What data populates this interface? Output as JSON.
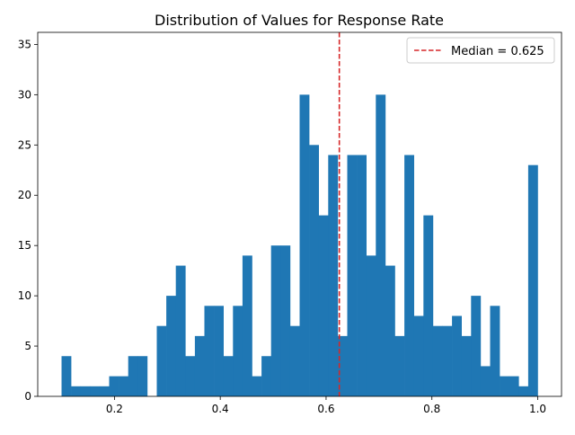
{
  "chart_data": {
    "type": "bar",
    "title": "Distribution of Values for Response Rate",
    "xlabel": "",
    "ylabel": "",
    "bar_color": "#1f77b4",
    "bin_start": 0.1,
    "bin_width": 0.018,
    "counts": [
      4,
      1,
      1,
      1,
      1,
      2,
      2,
      4,
      4,
      0,
      7,
      10,
      13,
      4,
      6,
      9,
      9,
      4,
      9,
      14,
      2,
      4,
      15,
      15,
      7,
      30,
      25,
      18,
      24,
      6,
      24,
      24,
      14,
      30,
      13,
      6,
      24,
      8,
      18,
      7,
      7,
      8,
      6,
      10,
      3,
      9,
      2,
      2,
      1,
      23
    ],
    "xlim": [
      0.055,
      1.045
    ],
    "ylim": [
      0,
      36.2
    ],
    "xticks": [
      0.2,
      0.4,
      0.6,
      0.8,
      1.0
    ],
    "xtick_labels": [
      "0.2",
      "0.4",
      "0.6",
      "0.8",
      "1.0"
    ],
    "yticks": [
      0,
      5,
      10,
      15,
      20,
      25,
      30,
      35
    ],
    "ytick_labels": [
      "0",
      "5",
      "10",
      "15",
      "20",
      "25",
      "30",
      "35"
    ],
    "median": {
      "value": 0.625,
      "label": "Median = 0.625",
      "color": "#d62728"
    },
    "legend_position": "top-right"
  }
}
